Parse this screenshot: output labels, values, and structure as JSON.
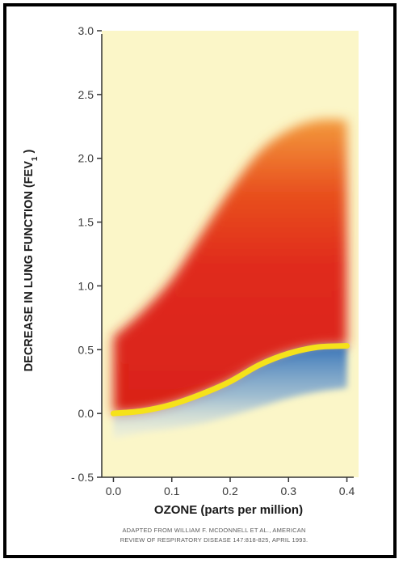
{
  "chart_data": {
    "type": "area",
    "xlabel": "OZONE (parts per million)",
    "ylabel_main": "DECREASE IN LUNG FUNCTION (FEV",
    "ylabel_sub": "1",
    "ylabel_close": " )",
    "xlim": [
      -0.02,
      0.42
    ],
    "ylim": [
      -0.5,
      3.0
    ],
    "x_ticks": [
      "0.0",
      "0.1",
      "0.2",
      "0.3",
      "0.4"
    ],
    "x_tick_values": [
      0.0,
      0.1,
      0.2,
      0.3,
      0.4
    ],
    "y_ticks": [
      "- 0.5",
      "0.0",
      "0.5",
      "1.0",
      "1.5",
      "2.0",
      "2.5",
      "3.0"
    ],
    "y_tick_values": [
      -0.5,
      0.0,
      0.5,
      1.0,
      1.5,
      2.0,
      2.5,
      3.0
    ],
    "series": [
      {
        "role": "upper-range",
        "x": [
          0.0,
          0.05,
          0.1,
          0.15,
          0.2,
          0.25,
          0.3,
          0.35,
          0.4
        ],
        "values": [
          0.6,
          0.8,
          1.05,
          1.4,
          1.75,
          2.05,
          2.22,
          2.3,
          2.3
        ]
      },
      {
        "role": "mean-response",
        "x": [
          0.0,
          0.05,
          0.1,
          0.15,
          0.2,
          0.25,
          0.3,
          0.35,
          0.4
        ],
        "values": [
          0.0,
          0.02,
          0.07,
          0.15,
          0.25,
          0.38,
          0.47,
          0.52,
          0.53
        ]
      },
      {
        "role": "lower-range",
        "x": [
          0.0,
          0.05,
          0.1,
          0.15,
          0.2,
          0.25,
          0.3,
          0.35,
          0.4
        ],
        "values": [
          -0.2,
          -0.15,
          -0.12,
          -0.08,
          -0.02,
          0.05,
          0.12,
          0.17,
          0.2
        ]
      }
    ],
    "colors": {
      "background": "#fbf6c8",
      "range_fill": "#e22a1c",
      "range_fill_light": "#f4a050",
      "mean_line": "#f5e21a",
      "below_fill": "#2f6fb8"
    },
    "source_lines": [
      "ADAPTED FROM WILLIAM F. MCDONNELL ET AL., AMERICAN",
      "REVIEW OF RESPIRATORY DISEASE 147:818-825, APRIL 1993."
    ]
  }
}
